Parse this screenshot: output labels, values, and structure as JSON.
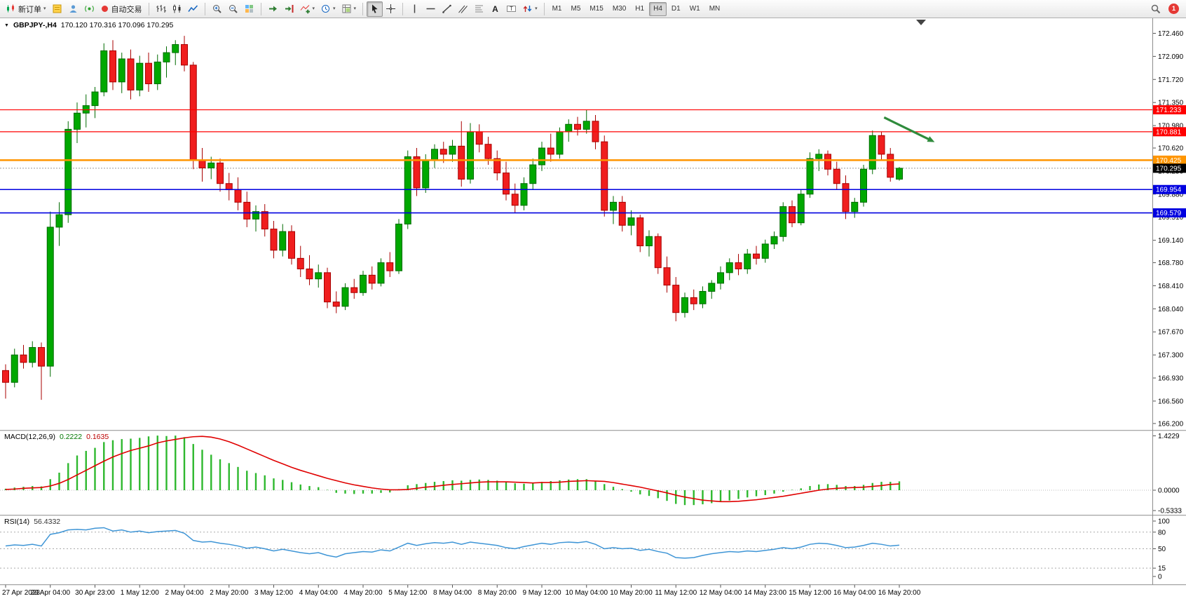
{
  "toolbar": {
    "new_order": "新订单",
    "autotrading": "自动交易",
    "timeframes": [
      "M1",
      "M5",
      "M15",
      "M30",
      "H1",
      "H4",
      "D1",
      "W1",
      "MN"
    ],
    "active_timeframe": "H4",
    "notification_count": "1"
  },
  "chart": {
    "symbol": "GBPJPY-,H4",
    "ohlc_display": "170.120 170.316 170.096 170.295"
  },
  "macd": {
    "name": "MACD(12,26,9)",
    "value_main": "0.2222",
    "value_signal": "0.1635"
  },
  "rsi": {
    "name": "RSI(14)",
    "value": "56.4332"
  },
  "chart_data": {
    "type": "candlestick",
    "symbol": "GBPJPY-",
    "timeframe": "H4",
    "bars_per_label": 5,
    "time_labels": [
      "27 Apr 2023",
      "28 Apr 04:00",
      "30 Apr 23:00",
      "1 May 12:00",
      "2 May 04:00",
      "2 May 20:00",
      "3 May 12:00",
      "4 May 04:00",
      "4 May 20:00",
      "5 May 12:00",
      "8 May 04:00",
      "8 May 20:00",
      "9 May 12:00",
      "10 May 04:00",
      "10 May 20:00",
      "11 May 12:00",
      "12 May 04:00",
      "14 May 23:00",
      "15 May 12:00",
      "16 May 04:00",
      "16 May 20:00"
    ],
    "price_panel": {
      "ylim": [
        166.09,
        172.7
      ],
      "axis_labels": [
        "172.460",
        "172.090",
        "171.720",
        "171.350",
        "170.980",
        "170.620",
        "170.250",
        "169.880",
        "169.510",
        "169.140",
        "168.780",
        "168.410",
        "168.040",
        "167.670",
        "167.300",
        "166.930",
        "166.560",
        "166.200"
      ],
      "up_color": "#00A800",
      "up_border": "#006B00",
      "down_color": "#F01E1E",
      "down_border": "#A80000",
      "candles": [
        [
          167.05,
          167.15,
          166.6,
          166.86
        ],
        [
          166.86,
          167.4,
          166.78,
          167.3
        ],
        [
          167.3,
          167.46,
          167.08,
          167.18
        ],
        [
          167.18,
          167.52,
          167.1,
          167.42
        ],
        [
          167.42,
          167.5,
          166.58,
          167.12
        ],
        [
          167.12,
          169.6,
          166.95,
          169.35
        ],
        [
          169.35,
          169.75,
          169.05,
          169.55
        ],
        [
          169.55,
          171.05,
          169.42,
          170.92
        ],
        [
          170.92,
          171.35,
          170.7,
          171.18
        ],
        [
          171.18,
          171.48,
          170.95,
          171.3
        ],
        [
          171.3,
          171.6,
          171.1,
          171.52
        ],
        [
          171.52,
          172.3,
          171.45,
          172.18
        ],
        [
          172.18,
          172.35,
          171.55,
          171.68
        ],
        [
          171.68,
          172.15,
          171.5,
          172.05
        ],
        [
          172.05,
          172.2,
          171.4,
          171.55
        ],
        [
          171.55,
          172.1,
          171.45,
          171.98
        ],
        [
          171.98,
          172.15,
          171.52,
          171.65
        ],
        [
          171.65,
          172.12,
          171.55,
          172.0
        ],
        [
          172.0,
          172.25,
          171.75,
          172.15
        ],
        [
          172.15,
          172.35,
          171.95,
          172.28
        ],
        [
          172.28,
          172.42,
          171.85,
          171.95
        ],
        [
          171.95,
          172.0,
          170.28,
          170.42
        ],
        [
          170.42,
          170.62,
          170.08,
          170.3
        ],
        [
          170.3,
          170.48,
          170.12,
          170.38
        ],
        [
          170.38,
          170.45,
          169.92,
          170.05
        ],
        [
          170.05,
          170.22,
          169.78,
          169.95
        ],
        [
          169.95,
          170.15,
          169.62,
          169.75
        ],
        [
          169.75,
          169.92,
          169.35,
          169.48
        ],
        [
          169.48,
          169.7,
          169.28,
          169.6
        ],
        [
          169.6,
          169.72,
          169.2,
          169.32
        ],
        [
          169.32,
          169.45,
          168.85,
          168.98
        ],
        [
          168.98,
          169.4,
          168.88,
          169.28
        ],
        [
          169.28,
          169.38,
          168.75,
          168.85
        ],
        [
          168.85,
          169.05,
          168.55,
          168.68
        ],
        [
          168.68,
          168.9,
          168.42,
          168.52
        ],
        [
          168.52,
          168.75,
          168.38,
          168.62
        ],
        [
          168.62,
          168.7,
          168.05,
          168.15
        ],
        [
          168.15,
          168.32,
          167.97,
          168.08
        ],
        [
          168.08,
          168.45,
          168.02,
          168.38
        ],
        [
          168.38,
          168.52,
          168.2,
          168.3
        ],
        [
          168.3,
          168.65,
          168.25,
          168.58
        ],
        [
          168.58,
          168.72,
          168.35,
          168.45
        ],
        [
          168.45,
          168.85,
          168.4,
          168.78
        ],
        [
          168.78,
          168.95,
          168.55,
          168.65
        ],
        [
          168.65,
          169.48,
          168.6,
          169.4
        ],
        [
          169.4,
          170.58,
          169.32,
          170.48
        ],
        [
          170.48,
          170.62,
          169.85,
          169.98
        ],
        [
          169.98,
          170.52,
          169.9,
          170.42
        ],
        [
          170.42,
          170.68,
          170.3,
          170.6
        ],
        [
          170.6,
          170.72,
          170.38,
          170.52
        ],
        [
          170.52,
          170.75,
          170.4,
          170.65
        ],
        [
          170.65,
          171.05,
          170.0,
          170.12
        ],
        [
          170.12,
          171.02,
          170.05,
          170.88
        ],
        [
          170.88,
          171.0,
          170.55,
          170.68
        ],
        [
          170.68,
          170.8,
          170.35,
          170.45
        ],
        [
          170.45,
          170.58,
          170.1,
          170.22
        ],
        [
          170.22,
          170.4,
          169.78,
          169.88
        ],
        [
          169.88,
          170.05,
          169.58,
          169.7
        ],
        [
          169.7,
          170.15,
          169.62,
          170.05
        ],
        [
          170.05,
          170.45,
          169.95,
          170.35
        ],
        [
          170.35,
          170.72,
          170.25,
          170.62
        ],
        [
          170.62,
          170.85,
          170.4,
          170.52
        ],
        [
          170.52,
          170.95,
          170.45,
          170.88
        ],
        [
          170.88,
          171.08,
          170.72,
          171.0
        ],
        [
          171.0,
          171.12,
          170.82,
          170.92
        ],
        [
          170.92,
          171.23,
          170.85,
          171.05
        ],
        [
          171.05,
          171.15,
          170.6,
          170.72
        ],
        [
          170.72,
          170.82,
          169.52,
          169.62
        ],
        [
          169.62,
          169.85,
          169.4,
          169.75
        ],
        [
          169.75,
          169.85,
          169.28,
          169.38
        ],
        [
          169.38,
          169.62,
          169.22,
          169.5
        ],
        [
          169.5,
          169.55,
          168.95,
          169.05
        ],
        [
          169.05,
          169.3,
          168.88,
          169.2
        ],
        [
          169.2,
          169.25,
          168.6,
          168.7
        ],
        [
          168.7,
          168.88,
          168.3,
          168.42
        ],
        [
          168.42,
          168.55,
          167.84,
          167.98
        ],
        [
          167.98,
          168.3,
          167.9,
          168.22
        ],
        [
          168.22,
          168.35,
          168.02,
          168.12
        ],
        [
          168.12,
          168.4,
          168.05,
          168.32
        ],
        [
          168.32,
          168.5,
          168.2,
          168.45
        ],
        [
          168.45,
          168.72,
          168.35,
          168.62
        ],
        [
          168.62,
          168.85,
          168.5,
          168.78
        ],
        [
          168.78,
          168.92,
          168.58,
          168.68
        ],
        [
          168.68,
          169.0,
          168.6,
          168.92
        ],
        [
          168.92,
          169.05,
          168.75,
          168.85
        ],
        [
          168.85,
          169.15,
          168.78,
          169.08
        ],
        [
          169.08,
          169.28,
          169.0,
          169.2
        ],
        [
          169.2,
          169.75,
          169.12,
          169.68
        ],
        [
          169.68,
          169.78,
          169.35,
          169.42
        ],
        [
          169.42,
          169.95,
          169.38,
          169.88
        ],
        [
          169.88,
          170.55,
          169.82,
          170.45
        ],
        [
          170.45,
          170.6,
          170.25,
          170.52
        ],
        [
          170.52,
          170.58,
          170.18,
          170.28
        ],
        [
          170.28,
          170.4,
          169.95,
          170.05
        ],
        [
          170.05,
          170.18,
          169.48,
          169.6
        ],
        [
          169.6,
          169.82,
          169.5,
          169.75
        ],
        [
          169.75,
          170.35,
          169.68,
          170.28
        ],
        [
          170.28,
          170.9,
          170.2,
          170.82
        ],
        [
          170.82,
          170.88,
          170.42,
          170.52
        ],
        [
          170.52,
          170.62,
          170.08,
          170.15
        ],
        [
          170.12,
          170.316,
          170.096,
          170.295
        ]
      ],
      "hlines": [
        {
          "price": 171.233,
          "label": "171.233",
          "color": "#FF0000",
          "width": 1.2
        },
        {
          "price": 170.881,
          "label": "170.881",
          "color": "#FF0000",
          "width": 1.2
        },
        {
          "price": 170.425,
          "label": "170.425",
          "color": "#FF9500",
          "width": 2.4
        },
        {
          "price": 169.954,
          "label": "169.954",
          "color": "#0000E0",
          "width": 1.6
        },
        {
          "price": 169.579,
          "label": "169.579",
          "color": "#0000E0",
          "width": 1.6
        }
      ],
      "bid_line": {
        "price": 170.295,
        "label": "170.295",
        "color": "#000000"
      },
      "arrow": {
        "from_bar": 98.3,
        "from_price": 171.11,
        "to_bar": 103.6,
        "to_price": 170.74,
        "color": "#2F8B3C"
      }
    },
    "macd_panel": {
      "histogram_color": "#2EB82E",
      "signal_color": "#E00000",
      "axis_labels": [
        {
          "value": 1.4229,
          "text": "1.4229"
        },
        {
          "value": 0,
          "text": "0.0000"
        },
        {
          "value": -0.5333,
          "text": "-0.5333"
        }
      ],
      "histogram": [
        0.03,
        0.06,
        0.08,
        0.1,
        0.09,
        0.28,
        0.45,
        0.7,
        0.9,
        1.02,
        1.1,
        1.25,
        1.3,
        1.33,
        1.34,
        1.36,
        1.4,
        1.42,
        1.41,
        1.42,
        1.38,
        1.2,
        1.05,
        0.92,
        0.8,
        0.7,
        0.6,
        0.5,
        0.44,
        0.38,
        0.3,
        0.26,
        0.2,
        0.14,
        0.1,
        0.07,
        0.0,
        -0.06,
        -0.08,
        -0.09,
        -0.08,
        -0.08,
        -0.06,
        -0.05,
        0.02,
        0.12,
        0.15,
        0.18,
        0.21,
        0.23,
        0.25,
        0.24,
        0.26,
        0.27,
        0.26,
        0.24,
        0.2,
        0.17,
        0.16,
        0.18,
        0.21,
        0.23,
        0.25,
        0.27,
        0.28,
        0.28,
        0.24,
        0.15,
        0.08,
        0.02,
        -0.03,
        -0.1,
        -0.14,
        -0.2,
        -0.27,
        -0.35,
        -0.38,
        -0.38,
        -0.36,
        -0.33,
        -0.3,
        -0.26,
        -0.22,
        -0.18,
        -0.15,
        -0.12,
        -0.08,
        -0.03,
        0.0,
        0.04,
        0.1,
        0.14,
        0.15,
        0.13,
        0.1,
        0.1,
        0.13,
        0.18,
        0.21,
        0.21,
        0.2222
      ],
      "signal": [
        0.02,
        0.03,
        0.05,
        0.06,
        0.07,
        0.11,
        0.18,
        0.28,
        0.4,
        0.52,
        0.64,
        0.76,
        0.87,
        0.96,
        1.04,
        1.1,
        1.16,
        1.24,
        1.29,
        1.33,
        1.37,
        1.4,
        1.41,
        1.39,
        1.34,
        1.27,
        1.18,
        1.08,
        0.98,
        0.88,
        0.78,
        0.69,
        0.6,
        0.52,
        0.45,
        0.38,
        0.31,
        0.25,
        0.19,
        0.14,
        0.1,
        0.06,
        0.03,
        0.01,
        0.01,
        0.02,
        0.05,
        0.08,
        0.1,
        0.13,
        0.15,
        0.17,
        0.19,
        0.21,
        0.22,
        0.22,
        0.22,
        0.21,
        0.2,
        0.19,
        0.2,
        0.2,
        0.21,
        0.23,
        0.24,
        0.25,
        0.24,
        0.23,
        0.2,
        0.16,
        0.12,
        0.08,
        0.03,
        -0.02,
        -0.07,
        -0.13,
        -0.18,
        -0.22,
        -0.26,
        -0.28,
        -0.3,
        -0.3,
        -0.29,
        -0.27,
        -0.25,
        -0.22,
        -0.19,
        -0.16,
        -0.12,
        -0.08,
        -0.04,
        0.0,
        0.03,
        0.05,
        0.06,
        0.07,
        0.08,
        0.1,
        0.12,
        0.15,
        0.1635
      ]
    },
    "rsi_panel": {
      "color": "#3E95D6",
      "levels": [
        80,
        50,
        15
      ],
      "axis_labels": [
        {
          "value": 100,
          "text": "100"
        },
        {
          "value": 80,
          "text": "80"
        },
        {
          "value": 50,
          "text": "50"
        },
        {
          "value": 15,
          "text": "15"
        },
        {
          "value": 0,
          "text": "0"
        }
      ],
      "values": [
        55,
        57,
        56,
        58,
        55,
        76,
        79,
        84,
        85,
        84,
        87,
        88,
        82,
        84,
        80,
        82,
        79,
        81,
        82,
        83,
        78,
        65,
        62,
        63,
        60,
        58,
        55,
        51,
        53,
        50,
        46,
        49,
        46,
        43,
        41,
        43,
        38,
        35,
        41,
        43,
        45,
        44,
        48,
        46,
        53,
        60,
        56,
        59,
        61,
        60,
        62,
        58,
        62,
        60,
        58,
        56,
        52,
        50,
        54,
        57,
        60,
        58,
        61,
        62,
        61,
        63,
        58,
        50,
        52,
        50,
        51,
        47,
        49,
        45,
        42,
        34,
        33,
        34,
        38,
        41,
        43,
        45,
        44,
        46,
        45,
        47,
        49,
        52,
        50,
        53,
        58,
        60,
        59,
        56,
        52,
        53,
        56,
        60,
        58,
        55,
        56.43
      ]
    }
  }
}
